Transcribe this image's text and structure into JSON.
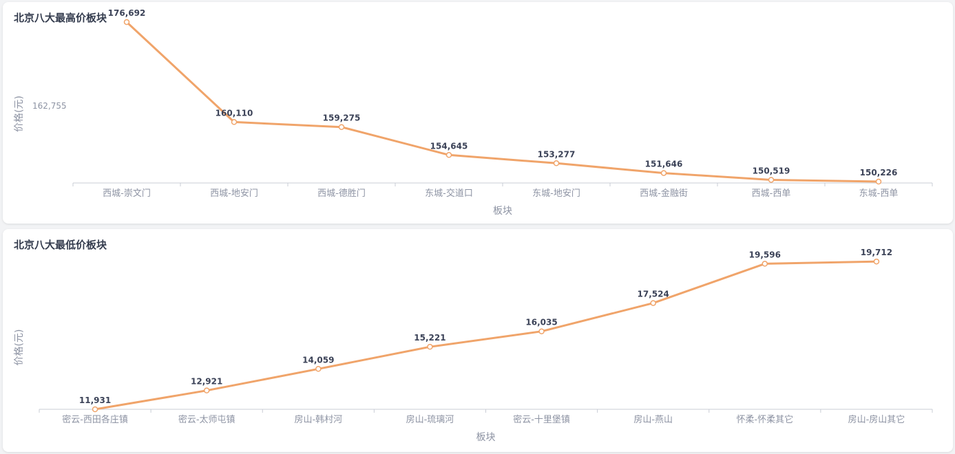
{
  "chart_data": [
    {
      "type": "line",
      "title": "北京八大最高价板块",
      "xlabel": "板块",
      "ylabel": "价格(元)",
      "categories": [
        "西城-崇文门",
        "西城-地安门",
        "西城-德胜门",
        "东城-交道口",
        "东城-地安门",
        "西城-金融街",
        "西城-西单",
        "东城-西单"
      ],
      "values": [
        176692,
        160110,
        159275,
        154645,
        153277,
        151646,
        150519,
        150226
      ],
      "value_labels": [
        "176,692",
        "160,110",
        "159,275",
        "154,645",
        "153,277",
        "151,646",
        "150,519",
        "150,226"
      ],
      "y_reference": {
        "value": 162755,
        "label": "162,755"
      },
      "ylim": [
        150000,
        177500
      ],
      "color": "#f0a46a",
      "grid": false,
      "legend": false
    },
    {
      "type": "line",
      "title": "北京八大最低价板块",
      "xlabel": "板块",
      "ylabel": "价格(元)",
      "categories": [
        "密云-西田各庄镇",
        "密云-太师屯镇",
        "房山-韩村河",
        "房山-琉璃河",
        "密云-十里堡镇",
        "房山-燕山",
        "怀柔-怀柔其它",
        "房山-房山其它"
      ],
      "values": [
        11931,
        12921,
        14059,
        15221,
        16035,
        17524,
        19596,
        19712
      ],
      "value_labels": [
        "11,931",
        "12,921",
        "14,059",
        "15,221",
        "16,035",
        "17,524",
        "19,596",
        "19,712"
      ],
      "ylim": [
        11931,
        19900
      ],
      "color": "#f0a46a",
      "grid": false,
      "legend": false
    }
  ]
}
